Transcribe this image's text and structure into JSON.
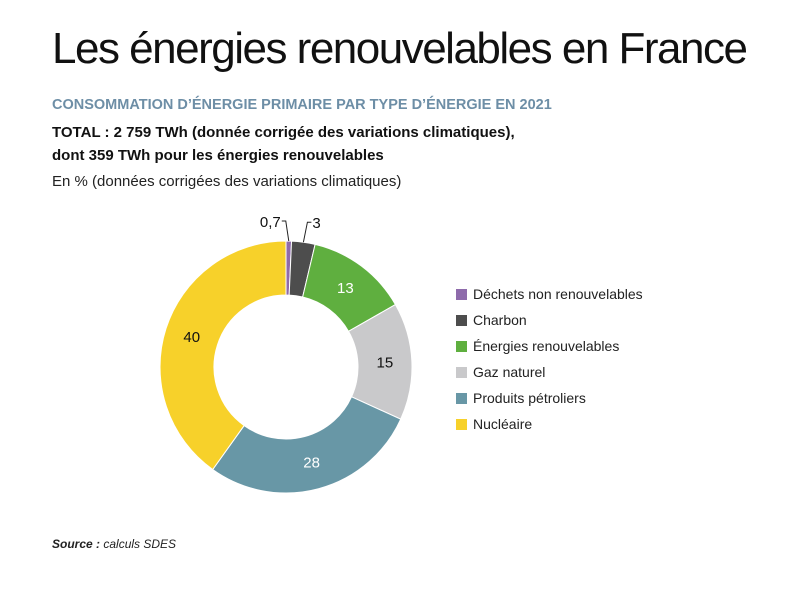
{
  "title": "Les énergies renouvelables en France",
  "subtitle": "CONSOMMATION D’ÉNERGIE PRIMAIRE PAR TYPE D’ÉNERGIE EN 2021",
  "total_line1": "TOTAL : 2 759 TWh (donnée corrigée des variations climatiques),",
  "total_line2": "dont 359 TWh pour les énergies renouvelables",
  "unit_note": "En % (données corrigées des variations climatiques)",
  "source_label": "Source :",
  "source_text": " calculs SDES",
  "colors": {
    "accent": "#6d8ea6"
  },
  "chart_data": {
    "type": "pie",
    "variant": "donut",
    "categories": [
      "Déchets non renouvelables",
      "Charbon",
      "Énergies renouvelables",
      "Gaz naturel",
      "Produits pétroliers",
      "Nucléaire"
    ],
    "values": [
      0.7,
      3,
      13,
      15,
      28,
      40
    ],
    "value_labels": [
      "0,7",
      "3",
      "13",
      "15",
      "28",
      "40"
    ],
    "colors": [
      "#8e6bab",
      "#4d4d4d",
      "#5faf3f",
      "#c9c9cb",
      "#6897a6",
      "#f7d12a"
    ],
    "label_colors": [
      "#111111",
      "#111111",
      "#ffffff",
      "#111111",
      "#ffffff",
      "#111111"
    ],
    "legend_position": "right"
  }
}
